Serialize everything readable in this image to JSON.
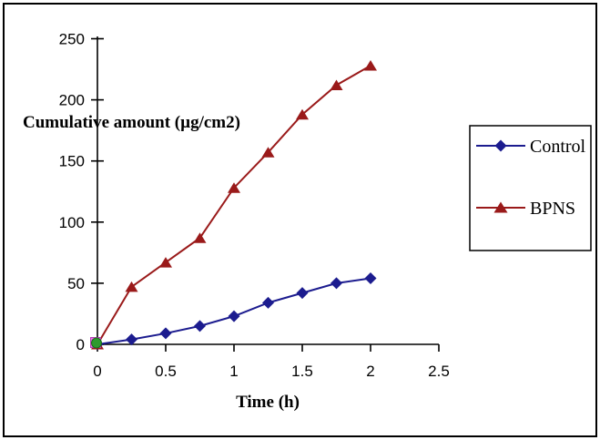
{
  "window": {
    "background_color": "#ffffff",
    "border_color": "#000000"
  },
  "chart_data": {
    "type": "line",
    "title": "",
    "xlabel": "Time (h)",
    "ylabel": "Cumulative amount (µg/cm2)",
    "x": [
      0,
      0.25,
      0.5,
      0.75,
      1,
      1.25,
      1.5,
      1.75,
      2
    ],
    "series": [
      {
        "name": "Control",
        "color": "#1c1c8f",
        "marker": "diamond",
        "values": [
          0,
          4,
          9,
          15,
          23,
          34,
          42,
          50,
          54
        ]
      },
      {
        "name": "BPNS",
        "color": "#9a1a1a",
        "marker": "triangle",
        "values": [
          0,
          47,
          67,
          87,
          128,
          157,
          188,
          212,
          228
        ]
      }
    ],
    "origin_overlay_markers": [
      {
        "marker": "square",
        "fill": "#ee6fee",
        "stroke": "#b03eb0",
        "x": 0,
        "y": 0
      },
      {
        "marker": "circle",
        "fill": "#2e9b2e",
        "stroke": "#1a6a1a",
        "x": 0,
        "y": 0
      }
    ],
    "xlim": [
      0,
      2.5
    ],
    "ylim": [
      0,
      250
    ],
    "x_tick_labels": [
      "0",
      "0.5",
      "1",
      "1.5",
      "2",
      "2.5"
    ],
    "x_tick_values": [
      0,
      0.5,
      1,
      1.5,
      2,
      2.5
    ],
    "y_tick_labels": [
      "0",
      "50",
      "100",
      "150",
      "200",
      "250"
    ],
    "y_tick_values": [
      0,
      50,
      100,
      150,
      200,
      250
    ],
    "grid": false,
    "legend_position": "middle-right",
    "axis_color": "#000000",
    "text_color": "#000000"
  },
  "legend": {
    "items": [
      {
        "label": "Control"
      },
      {
        "label": "BPNS"
      }
    ]
  }
}
